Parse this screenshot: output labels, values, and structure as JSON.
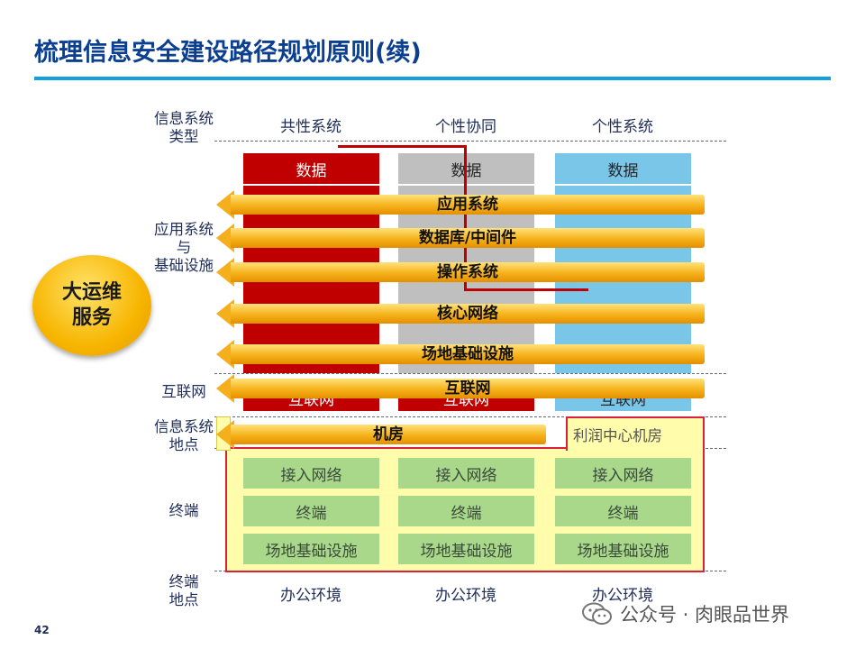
{
  "title": "梳理信息安全建设路径规划原则(续)",
  "page_number": "42",
  "columns": [
    "共性系统",
    "个性协同",
    "个性系统"
  ],
  "row_labels": {
    "system_type": "信息系统\n类型",
    "app_infra": "应用系统\n与\n基础设施",
    "internet": "互联网",
    "location": "信息系统\n地点",
    "terminal": "终端",
    "terminal_location": "终端\n地点"
  },
  "data_cells": [
    "数据",
    "数据",
    "数据"
  ],
  "internet_cells": [
    "互联网",
    "互联网",
    "互联网"
  ],
  "profit_center": "利润中心机房",
  "terminal_rows": [
    [
      "接入网络",
      "接入网络",
      "接入网络"
    ],
    [
      "终端",
      "终端",
      "终端"
    ],
    [
      "场地基础设施",
      "场地基础设施",
      "场地基础设施"
    ]
  ],
  "office_env": [
    "办公环境",
    "办公环境",
    "办公环境"
  ],
  "arrows": [
    "应用系统",
    "数据库/中间件",
    "操作系统",
    "核心网络",
    "场地基础设施",
    "互联网",
    "机房"
  ],
  "service_circle": "大运维\n服务",
  "watermark": "公众号 · 肉眼品世界",
  "colors": {
    "red": "#c00000",
    "grey": "#bfbfbf",
    "blue": "#79c6e9",
    "green": "#a9d88b",
    "yellow": "#fffdab",
    "accent": "#12a0de"
  }
}
